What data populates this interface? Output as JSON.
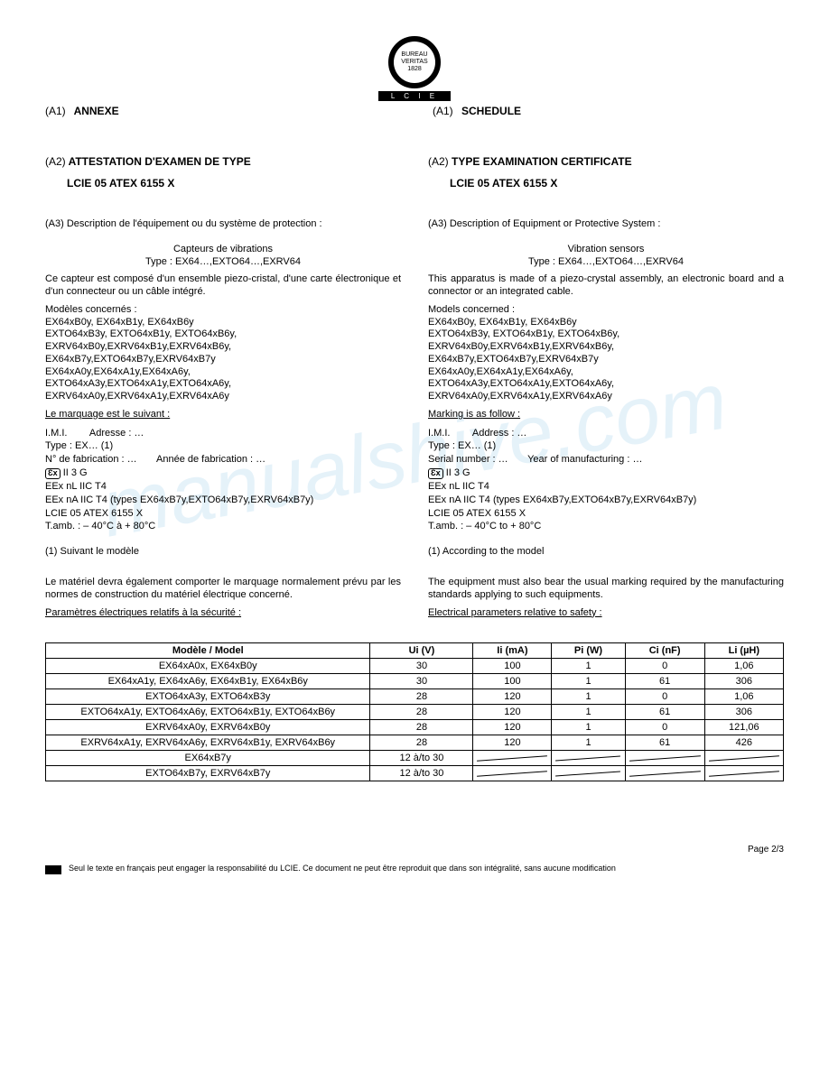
{
  "logo": {
    "text": "BUREAU VERITAS 1828",
    "bar": "L C I E"
  },
  "header": {
    "left": {
      "tag": "(A1)",
      "title": "ANNEXE"
    },
    "right": {
      "tag": "(A1)",
      "title": "SCHEDULE"
    }
  },
  "a2": {
    "left": {
      "tag": "(A2)",
      "title": "ATTESTATION D'EXAMEN DE TYPE"
    },
    "right": {
      "tag": "(A2)",
      "title": "TYPE EXAMINATION CERTIFICATE"
    },
    "cert": "LCIE 05 ATEX 6155 X"
  },
  "a3": {
    "leftLabel": "(A3)  Description de l'équipement ou du système de protection :",
    "rightLabel": "(A3)  Description of Equipment or Protective System :",
    "leftSub1": "Capteurs de vibrations",
    "leftSub2": "Type : EX64…,EXTO64…,EXRV64",
    "rightSub1": "Vibration sensors",
    "rightSub2": "Type : EX64…,EXTO64…,EXRV64"
  },
  "desc": {
    "left": "Ce capteur est composé d'un ensemble piezo-cristal, d'une carte électronique et d'un connecteur ou un câble intégré.",
    "right": "This apparatus is made of a piezo-crystal assembly, an electronic board and a connector or an integrated cable."
  },
  "models": {
    "leftTitle": "Modèles concernés :",
    "rightTitle": "Models concerned :",
    "leftList": "EX64xB0y, EX64xB1y, EX64xB6y\nEXTO64xB3y, EXTO64xB1y, EXTO64xB6y,\nEXRV64xB0y,EXRV64xB1y,EXRV64xB6y,\nEX64xB7y,EXTO64xB7y,EXRV64xB7y\nEX64xA0y,EX64xA1y,EX64xA6y,\nEXTO64xA3y,EXTO64xA1y,EXTO64xA6y,\nEXRV64xA0y,EXRV64xA1y,EXRV64xA6y",
    "rightList": "EX64xB0y, EX64xB1y, EX64xB6y\nEXTO64xB3y, EXTO64xB1y, EXTO64xB6y,\nEXRV64xB0y,EXRV64xB1y,EXRV64xB6y,\nEX64xB7y,EXTO64xB7y,EXRV64xB7y\nEX64xA0y,EX64xA1y,EX64xA6y,\nEXTO64xA3y,EXTO64xA1y,EXTO64xA6y,\nEXRV64xA0y,EXRV64xA1y,EXRV64xA6y"
  },
  "markingTitle": {
    "left": "Le marquage est le suivant :",
    "right": "Marking is as follow :"
  },
  "marking": {
    "left": {
      "l1a": "I.M.I.",
      "l1b": "Adresse : …",
      "l2": "Type : EX…   (1)",
      "l3a": "N° de fabrication : …",
      "l3b": "Année de fabrication : …",
      "l4": "II 3 G",
      "l5": "EEx nL IIC T4",
      "l6": "EEx nA IIC T4 (types EX64xB7y,EXTO64xB7y,EXRV64xB7y)",
      "l7": "LCIE 05 ATEX 6155 X",
      "l8": "T.amb. : – 40°C à + 80°C",
      "note": "(1) Suivant le modèle"
    },
    "right": {
      "l1a": "I.M.I.",
      "l1b": "Address : …",
      "l2": "Type : EX…   (1)",
      "l3a": "Serial number : …",
      "l3b": "Year of manufacturing : …",
      "l4": "II 3 G",
      "l5": "EEx nL IIC T4",
      "l6": "EEx nA IIC T4 (types EX64xB7y,EXTO64xB7y,EXRV64xB7y)",
      "l7": "LCIE 05 ATEX 6155 X",
      "l8": "T.amb. : – 40°C to + 80°C",
      "note": "(1) According to the model"
    }
  },
  "extra": {
    "left": "Le matériel devra également comporter le marquage normalement prévu par les normes de construction du matériel électrique concerné.",
    "right": "The equipment must also bear the usual marking required by the manufacturing standards applying to such equipments."
  },
  "paramsTitle": {
    "left": "Paramètres électriques relatifs à la sécurité :",
    "right": "Electrical parameters relative to safety :"
  },
  "table": {
    "headers": [
      "Modèle / Model",
      "Ui (V)",
      "Ii (mA)",
      "Pi (W)",
      "Ci (nF)",
      "Li (µH)"
    ],
    "rows": [
      {
        "model": "EX64xA0x, EX64xB0y",
        "ui": "30",
        "ii": "100",
        "pi": "1",
        "ci": "0",
        "li": "1,06"
      },
      {
        "model": "EX64xA1y, EX64xA6y, EX64xB1y, EX64xB6y",
        "ui": "30",
        "ii": "100",
        "pi": "1",
        "ci": "61",
        "li": "306"
      },
      {
        "model": "EXTO64xA3y, EXTO64xB3y",
        "ui": "28",
        "ii": "120",
        "pi": "1",
        "ci": "0",
        "li": "1,06"
      },
      {
        "model": "EXTO64xA1y, EXTO64xA6y, EXTO64xB1y, EXTO64xB6y",
        "ui": "28",
        "ii": "120",
        "pi": "1",
        "ci": "61",
        "li": "306"
      },
      {
        "model": "EXRV64xA0y, EXRV64xB0y",
        "ui": "28",
        "ii": "120",
        "pi": "1",
        "ci": "0",
        "li": "121,06"
      },
      {
        "model": "EXRV64xA1y, EXRV64xA6y, EXRV64xB1y, EXRV64xB6y",
        "ui": "28",
        "ii": "120",
        "pi": "1",
        "ci": "61",
        "li": "426"
      },
      {
        "model": "EX64xB7y",
        "ui": "12 à/to 30",
        "strike": true
      },
      {
        "model": "EXTO64xB7y, EXRV64xB7y",
        "ui": "12 à/to 30",
        "strike": true
      }
    ]
  },
  "pageNum": "Page 2/3",
  "footnote": "Seul le texte en français peut engager la responsabilité du LCIE. Ce document ne peut être reproduit que dans son intégralité, sans aucune modification"
}
